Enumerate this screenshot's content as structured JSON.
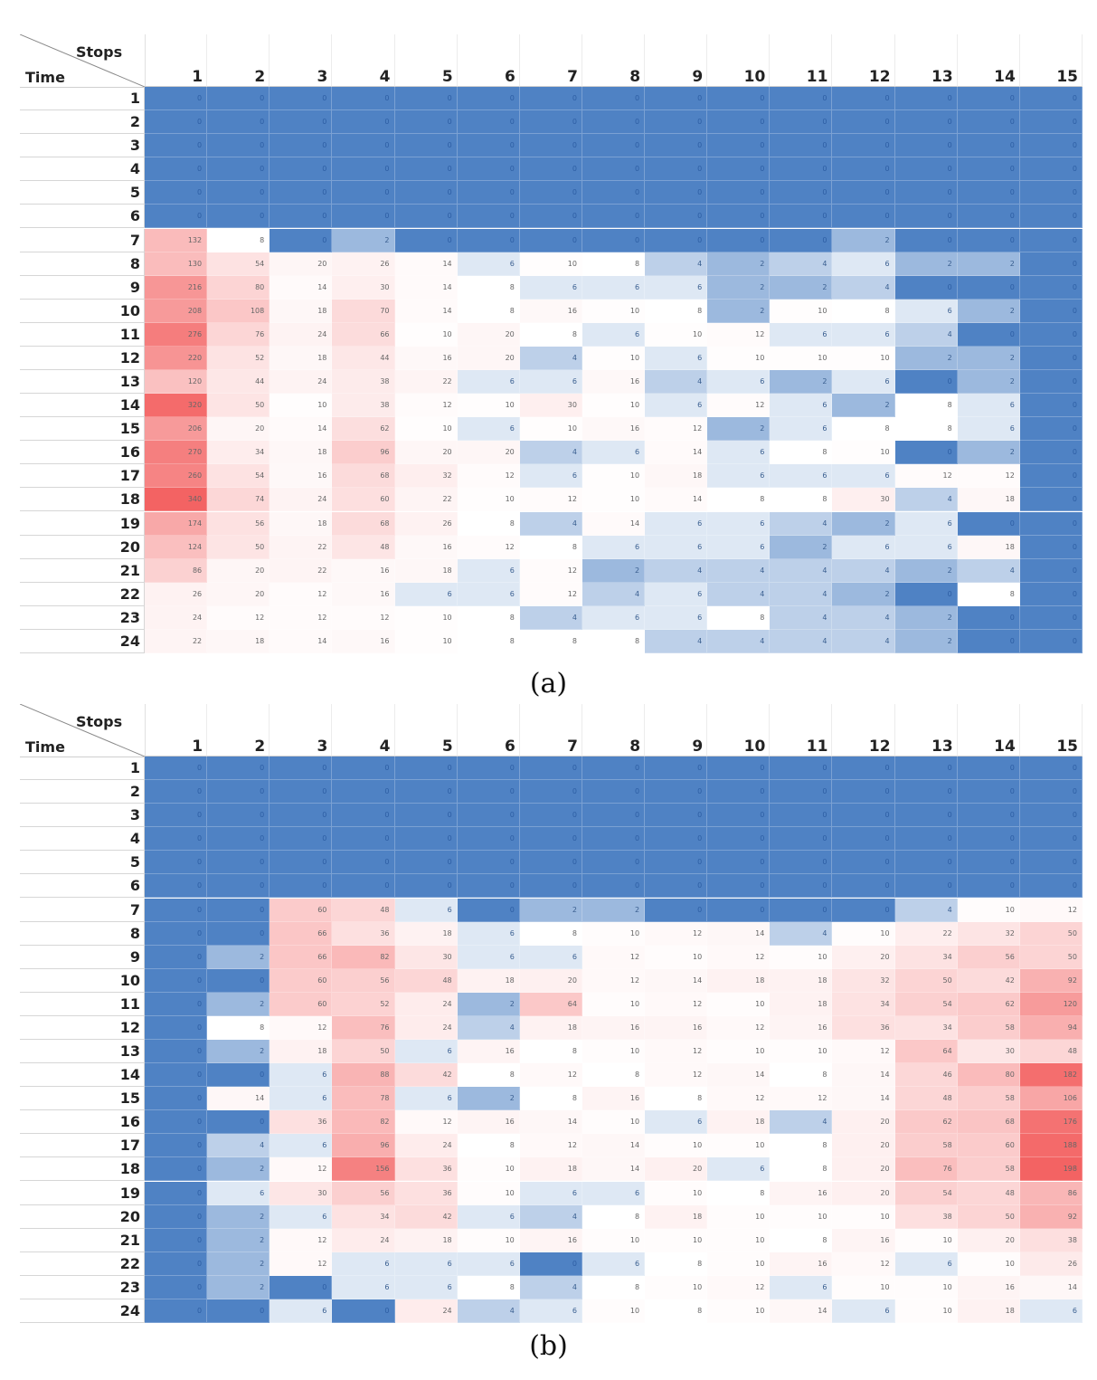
{
  "chart_data": [
    {
      "type": "heatmap",
      "caption": "(a)",
      "xlabel": "Stops",
      "ylabel": "Time",
      "x": [
        1,
        2,
        3,
        4,
        5,
        6,
        7,
        8,
        9,
        10,
        11,
        12,
        13,
        14,
        15
      ],
      "y": [
        1,
        2,
        3,
        4,
        5,
        6,
        7,
        8,
        9,
        10,
        11,
        12,
        13,
        14,
        15,
        16,
        17,
        18,
        19,
        20,
        21,
        22,
        23,
        24
      ],
      "values": [
        [
          0,
          0,
          0,
          0,
          0,
          0,
          0,
          0,
          0,
          0,
          0,
          0,
          0,
          0,
          0
        ],
        [
          0,
          0,
          0,
          0,
          0,
          0,
          0,
          0,
          0,
          0,
          0,
          0,
          0,
          0,
          0
        ],
        [
          0,
          0,
          0,
          0,
          0,
          0,
          0,
          0,
          0,
          0,
          0,
          0,
          0,
          0,
          0
        ],
        [
          0,
          0,
          0,
          0,
          0,
          0,
          0,
          0,
          0,
          0,
          0,
          0,
          0,
          0,
          0
        ],
        [
          0,
          0,
          0,
          0,
          0,
          0,
          0,
          0,
          0,
          0,
          0,
          0,
          0,
          0,
          0
        ],
        [
          0,
          0,
          0,
          0,
          0,
          0,
          0,
          0,
          0,
          0,
          0,
          0,
          0,
          0,
          0
        ],
        [
          132,
          8,
          0,
          2,
          0,
          0,
          0,
          0,
          0,
          0,
          0,
          2,
          0,
          0,
          0
        ],
        [
          130,
          54,
          20,
          26,
          14,
          6,
          10,
          8,
          4,
          2,
          4,
          6,
          2,
          2,
          0
        ],
        [
          216,
          80,
          14,
          30,
          14,
          8,
          6,
          6,
          6,
          2,
          2,
          4,
          0,
          0,
          0
        ],
        [
          208,
          108,
          18,
          70,
          14,
          8,
          16,
          10,
          8,
          2,
          10,
          8,
          6,
          2,
          0
        ],
        [
          276,
          76,
          24,
          66,
          10,
          20,
          8,
          6,
          10,
          12,
          6,
          6,
          4,
          0,
          0
        ],
        [
          220,
          52,
          18,
          44,
          16,
          20,
          4,
          10,
          6,
          10,
          10,
          10,
          2,
          2,
          0
        ],
        [
          120,
          44,
          24,
          38,
          22,
          6,
          6,
          16,
          4,
          6,
          2,
          6,
          0,
          2,
          0
        ],
        [
          320,
          50,
          10,
          38,
          12,
          10,
          30,
          10,
          6,
          12,
          6,
          2,
          8,
          6,
          0
        ],
        [
          206,
          20,
          14,
          62,
          10,
          6,
          10,
          16,
          12,
          2,
          6,
          8,
          8,
          6,
          0
        ],
        [
          270,
          34,
          18,
          96,
          20,
          20,
          4,
          6,
          14,
          6,
          8,
          10,
          0,
          2,
          0
        ],
        [
          260,
          54,
          16,
          68,
          32,
          12,
          6,
          10,
          18,
          6,
          6,
          6,
          12,
          12,
          0
        ],
        [
          340,
          74,
          24,
          60,
          22,
          10,
          12,
          10,
          14,
          8,
          8,
          30,
          4,
          18,
          0
        ],
        [
          174,
          56,
          18,
          68,
          26,
          8,
          4,
          14,
          6,
          6,
          4,
          2,
          6,
          0,
          0
        ],
        [
          124,
          50,
          22,
          48,
          16,
          12,
          8,
          6,
          6,
          6,
          2,
          6,
          6,
          18,
          0
        ],
        [
          86,
          20,
          22,
          16,
          18,
          6,
          12,
          2,
          4,
          4,
          4,
          4,
          2,
          4,
          0
        ],
        [
          26,
          20,
          12,
          16,
          6,
          6,
          12,
          4,
          6,
          4,
          4,
          2,
          0,
          8,
          0
        ],
        [
          24,
          12,
          12,
          12,
          10,
          8,
          4,
          6,
          6,
          8,
          4,
          4,
          2,
          0,
          0
        ],
        [
          22,
          18,
          14,
          16,
          10,
          8,
          8,
          8,
          4,
          4,
          4,
          4,
          2,
          0,
          0
        ]
      ]
    },
    {
      "type": "heatmap",
      "caption": "(b)",
      "xlabel": "Stops",
      "ylabel": "Time",
      "x": [
        1,
        2,
        3,
        4,
        5,
        6,
        7,
        8,
        9,
        10,
        11,
        12,
        13,
        14,
        15
      ],
      "y": [
        1,
        2,
        3,
        4,
        5,
        6,
        7,
        8,
        9,
        10,
        11,
        12,
        13,
        14,
        15,
        16,
        17,
        18,
        19,
        20,
        21,
        22,
        23,
        24
      ],
      "values": [
        [
          0,
          0,
          0,
          0,
          0,
          0,
          0,
          0,
          0,
          0,
          0,
          0,
          0,
          0,
          0
        ],
        [
          0,
          0,
          0,
          0,
          0,
          0,
          0,
          0,
          0,
          0,
          0,
          0,
          0,
          0,
          0
        ],
        [
          0,
          0,
          0,
          0,
          0,
          0,
          0,
          0,
          0,
          0,
          0,
          0,
          0,
          0,
          0
        ],
        [
          0,
          0,
          0,
          0,
          0,
          0,
          0,
          0,
          0,
          0,
          0,
          0,
          0,
          0,
          0
        ],
        [
          0,
          0,
          0,
          0,
          0,
          0,
          0,
          0,
          0,
          0,
          0,
          0,
          0,
          0,
          0
        ],
        [
          0,
          0,
          0,
          0,
          0,
          0,
          0,
          0,
          0,
          0,
          0,
          0,
          0,
          0,
          0
        ],
        [
          0,
          0,
          60,
          48,
          6,
          0,
          2,
          2,
          0,
          0,
          0,
          0,
          4,
          10,
          12
        ],
        [
          0,
          0,
          66,
          36,
          18,
          6,
          8,
          10,
          12,
          14,
          4,
          10,
          22,
          32,
          50
        ],
        [
          0,
          2,
          66,
          82,
          30,
          6,
          6,
          12,
          10,
          12,
          10,
          20,
          34,
          56,
          50
        ],
        [
          0,
          0,
          60,
          56,
          48,
          18,
          20,
          12,
          14,
          18,
          18,
          32,
          50,
          42,
          92
        ],
        [
          0,
          2,
          60,
          52,
          24,
          2,
          64,
          10,
          12,
          10,
          18,
          34,
          54,
          62,
          120
        ],
        [
          0,
          8,
          12,
          76,
          24,
          4,
          18,
          16,
          16,
          12,
          16,
          36,
          34,
          58,
          94
        ],
        [
          0,
          2,
          18,
          50,
          6,
          16,
          8,
          10,
          12,
          10,
          10,
          12,
          64,
          30,
          48
        ],
        [
          0,
          0,
          6,
          88,
          42,
          8,
          12,
          8,
          12,
          14,
          8,
          14,
          46,
          80,
          182
        ],
        [
          0,
          14,
          6,
          78,
          6,
          2,
          8,
          16,
          8,
          12,
          12,
          14,
          48,
          58,
          106
        ],
        [
          0,
          0,
          36,
          82,
          12,
          16,
          14,
          10,
          6,
          18,
          4,
          20,
          62,
          68,
          176
        ],
        [
          0,
          4,
          6,
          96,
          24,
          8,
          12,
          14,
          10,
          10,
          8,
          20,
          58,
          60,
          188
        ],
        [
          0,
          2,
          12,
          156,
          36,
          10,
          18,
          14,
          20,
          6,
          8,
          20,
          76,
          58,
          198
        ],
        [
          0,
          6,
          30,
          56,
          36,
          10,
          6,
          6,
          10,
          8,
          16,
          20,
          54,
          48,
          86
        ],
        [
          0,
          2,
          6,
          34,
          42,
          6,
          4,
          8,
          18,
          10,
          10,
          10,
          38,
          50,
          92
        ],
        [
          0,
          2,
          12,
          24,
          18,
          10,
          16,
          10,
          10,
          10,
          8,
          16,
          10,
          20,
          38
        ],
        [
          0,
          2,
          12,
          6,
          6,
          6,
          0,
          6,
          8,
          10,
          16,
          12,
          6,
          10,
          26
        ],
        [
          0,
          2,
          0,
          6,
          6,
          8,
          4,
          8,
          10,
          12,
          6,
          10,
          10,
          16,
          14
        ],
        [
          0,
          0,
          6,
          0,
          24,
          4,
          6,
          10,
          8,
          10,
          14,
          6,
          10,
          18,
          6
        ]
      ]
    }
  ]
}
